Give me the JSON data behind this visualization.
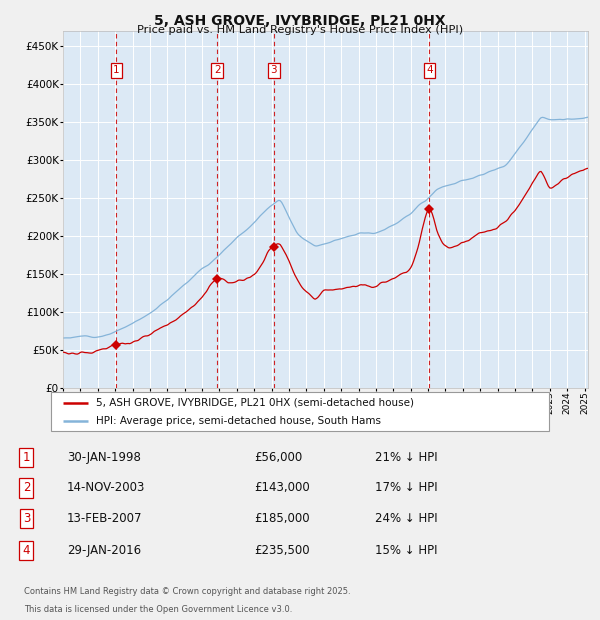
{
  "title": "5, ASH GROVE, IVYBRIDGE, PL21 0HX",
  "subtitle": "Price paid vs. HM Land Registry's House Price Index (HPI)",
  "ylim": [
    0,
    470000
  ],
  "ytick_vals": [
    0,
    50000,
    100000,
    150000,
    200000,
    250000,
    300000,
    350000,
    400000,
    450000
  ],
  "ytick_labels": [
    "£0",
    "£50K",
    "£100K",
    "£150K",
    "£200K",
    "£250K",
    "£300K",
    "£350K",
    "£400K",
    "£450K"
  ],
  "year_start": 1995,
  "year_end": 2025,
  "fig_bg_color": "#f0f0f0",
  "chart_bg_color": "#dce9f5",
  "grid_color": "#ffffff",
  "sale_line_color": "#cc0000",
  "hpi_line_color": "#85b4d9",
  "vline_color": "#cc0000",
  "sale_dates": [
    1998.075,
    2003.87,
    2007.12,
    2016.08
  ],
  "sale_prices": [
    56000,
    143000,
    185000,
    235500
  ],
  "sale_labels": [
    "1",
    "2",
    "3",
    "4"
  ],
  "legend_sale": "5, ASH GROVE, IVYBRIDGE, PL21 0HX (semi-detached house)",
  "legend_hpi": "HPI: Average price, semi-detached house, South Hams",
  "table_rows": [
    {
      "num": "1",
      "date": "30-JAN-1998",
      "price": "£56,000",
      "hpi_txt": "21% ↓ HPI"
    },
    {
      "num": "2",
      "date": "14-NOV-2003",
      "price": "£143,000",
      "hpi_txt": "17% ↓ HPI"
    },
    {
      "num": "3",
      "date": "13-FEB-2007",
      "price": "£185,000",
      "hpi_txt": "24% ↓ HPI"
    },
    {
      "num": "4",
      "date": "29-JAN-2016",
      "price": "£235,500",
      "hpi_txt": "15% ↓ HPI"
    }
  ],
  "footer_line1": "Contains HM Land Registry data © Crown copyright and database right 2025.",
  "footer_line2": "This data is licensed under the Open Government Licence v3.0."
}
